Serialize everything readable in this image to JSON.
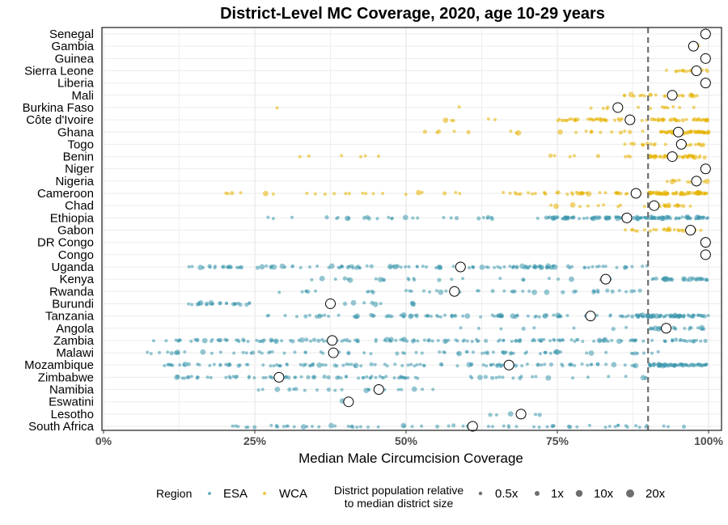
{
  "chart_data": {
    "type": "scatter",
    "title": "District-Level MC Coverage, 2020, age 10-29 years",
    "xlabel": "Median Male Circumcision Coverage",
    "xlim": [
      0,
      1
    ],
    "x_ticks": [
      {
        "value": 0,
        "label": "0%"
      },
      {
        "value": 0.25,
        "label": "25%"
      },
      {
        "value": 0.5,
        "label": "50%"
      },
      {
        "value": 0.75,
        "label": "75%"
      },
      {
        "value": 1.0,
        "label": "100%"
      }
    ],
    "target_line": 0.9,
    "grid": true,
    "colors": {
      "ESA": "#3c97ad",
      "WCA": "#e5b200"
    },
    "legend": {
      "placement": "bottom",
      "region_title": "Region",
      "region_items": [
        "ESA",
        "WCA"
      ],
      "size_title_line1": "District population relative",
      "size_title_line2": "to median district size",
      "size_items": [
        {
          "label": "0.5x",
          "r": 2.2
        },
        {
          "label": "1x",
          "r": 3
        },
        {
          "label": "10x",
          "r": 4.2
        },
        {
          "label": "20x",
          "r": 5
        }
      ]
    },
    "countries": [
      {
        "name": "Senegal",
        "region": "WCA",
        "median": 0.995,
        "ranges": [
          [
            0.99,
            1.0,
            3
          ]
        ]
      },
      {
        "name": "Gambia",
        "region": "WCA",
        "median": 0.975,
        "ranges": [
          [
            0.965,
            0.985,
            5
          ]
        ]
      },
      {
        "name": "Guinea",
        "region": "WCA",
        "median": 0.995,
        "ranges": [
          [
            0.99,
            1.0,
            3
          ]
        ]
      },
      {
        "name": "Sierra Leone",
        "region": "WCA",
        "median": 0.98,
        "ranges": [
          [
            0.93,
            1.0,
            16
          ]
        ]
      },
      {
        "name": "Liberia",
        "region": "WCA",
        "median": 0.995,
        "ranges": [
          [
            0.99,
            1.0,
            3
          ]
        ]
      },
      {
        "name": "Mali",
        "region": "WCA",
        "median": 0.94,
        "ranges": [
          [
            0.86,
            1.0,
            22
          ]
        ]
      },
      {
        "name": "Burkina Faso",
        "region": "WCA",
        "median": 0.85,
        "ranges": [
          [
            0.28,
            0.3,
            1
          ],
          [
            0.58,
            0.6,
            1
          ],
          [
            0.78,
            0.99,
            16
          ]
        ]
      },
      {
        "name": "Côte d'Ivoire",
        "region": "WCA",
        "median": 0.87,
        "ranges": [
          [
            0.53,
            0.65,
            5
          ],
          [
            0.75,
            1.0,
            70
          ]
        ]
      },
      {
        "name": "Ghana",
        "region": "WCA",
        "median": 0.95,
        "ranges": [
          [
            0.53,
            0.7,
            8
          ],
          [
            0.75,
            0.9,
            12
          ],
          [
            0.92,
            1.0,
            50
          ]
        ]
      },
      {
        "name": "Togo",
        "region": "WCA",
        "median": 0.955,
        "ranges": [
          [
            0.86,
            1.0,
            22
          ]
        ]
      },
      {
        "name": "Benin",
        "region": "WCA",
        "median": 0.94,
        "ranges": [
          [
            0.27,
            0.58,
            6
          ],
          [
            0.73,
            0.88,
            8
          ],
          [
            0.9,
            1.0,
            45
          ]
        ]
      },
      {
        "name": "Niger",
        "region": "WCA",
        "median": 0.995,
        "ranges": [
          [
            0.99,
            1.0,
            3
          ]
        ]
      },
      {
        "name": "Nigeria",
        "region": "WCA",
        "median": 0.98,
        "ranges": [
          [
            0.92,
            1.0,
            12
          ]
        ]
      },
      {
        "name": "Cameroon",
        "region": "WCA",
        "median": 0.88,
        "ranges": [
          [
            0.18,
            0.6,
            22
          ],
          [
            0.66,
            0.9,
            40
          ],
          [
            0.9,
            1.0,
            60
          ]
        ]
      },
      {
        "name": "Chad",
        "region": "WCA",
        "median": 0.91,
        "ranges": [
          [
            0.72,
            0.9,
            10
          ],
          [
            0.9,
            0.97,
            20
          ]
        ]
      },
      {
        "name": "Ethiopia",
        "region": "ESA",
        "median": 0.865,
        "ranges": [
          [
            0.27,
            0.72,
            28
          ],
          [
            0.73,
            1.0,
            120
          ]
        ]
      },
      {
        "name": "Gabon",
        "region": "WCA",
        "median": 0.97,
        "ranges": [
          [
            0.86,
            0.99,
            30
          ]
        ]
      },
      {
        "name": "DR Congo",
        "region": "ESA",
        "median": 0.995,
        "ranges": [
          [
            0.99,
            1.0,
            3
          ]
        ]
      },
      {
        "name": "Congo",
        "region": "ESA",
        "median": 0.995,
        "ranges": [
          [
            0.99,
            1.0,
            3
          ]
        ]
      },
      {
        "name": "Uganda",
        "region": "ESA",
        "median": 0.59,
        "ranges": [
          [
            0.14,
            0.9,
            130
          ]
        ]
      },
      {
        "name": "Kenya",
        "region": "ESA",
        "median": 0.83,
        "ranges": [
          [
            0.34,
            0.84,
            26
          ],
          [
            0.9,
            1.0,
            30
          ]
        ]
      },
      {
        "name": "Rwanda",
        "region": "ESA",
        "median": 0.58,
        "ranges": [
          [
            0.27,
            0.9,
            45
          ]
        ]
      },
      {
        "name": "Burundi",
        "region": "ESA",
        "median": 0.375,
        "ranges": [
          [
            0.14,
            0.25,
            24
          ],
          [
            0.33,
            0.52,
            10
          ]
        ]
      },
      {
        "name": "Tanzania",
        "region": "ESA",
        "median": 0.805,
        "ranges": [
          [
            0.26,
            0.88,
            90
          ],
          [
            0.88,
            1.0,
            70
          ]
        ]
      },
      {
        "name": "Angola",
        "region": "ESA",
        "median": 0.93,
        "ranges": [
          [
            0.58,
            0.88,
            8
          ],
          [
            0.9,
            1.0,
            20
          ]
        ]
      },
      {
        "name": "Zambia",
        "region": "ESA",
        "median": 0.378,
        "ranges": [
          [
            0.08,
            1.0,
            160
          ]
        ]
      },
      {
        "name": "Malawi",
        "region": "ESA",
        "median": 0.38,
        "ranges": [
          [
            0.07,
            0.92,
            80
          ]
        ]
      },
      {
        "name": "Mozambique",
        "region": "ESA",
        "median": 0.67,
        "ranges": [
          [
            0.1,
            0.88,
            110
          ],
          [
            0.9,
            1.0,
            60
          ]
        ]
      },
      {
        "name": "Zimbabwe",
        "region": "ESA",
        "median": 0.29,
        "ranges": [
          [
            0.12,
            0.52,
            70
          ],
          [
            0.6,
            0.9,
            20
          ]
        ]
      },
      {
        "name": "Namibia",
        "region": "ESA",
        "median": 0.455,
        "ranges": [
          [
            0.25,
            0.58,
            20
          ]
        ]
      },
      {
        "name": "Eswatini",
        "region": "ESA",
        "median": 0.405,
        "ranges": [
          [
            0.37,
            0.41,
            3
          ]
        ]
      },
      {
        "name": "Lesotho",
        "region": "ESA",
        "median": 0.69,
        "ranges": [
          [
            0.63,
            0.73,
            5
          ]
        ]
      },
      {
        "name": "South Africa",
        "region": "ESA",
        "median": 0.61,
        "ranges": [
          [
            0.21,
            0.97,
            70
          ]
        ]
      }
    ]
  }
}
